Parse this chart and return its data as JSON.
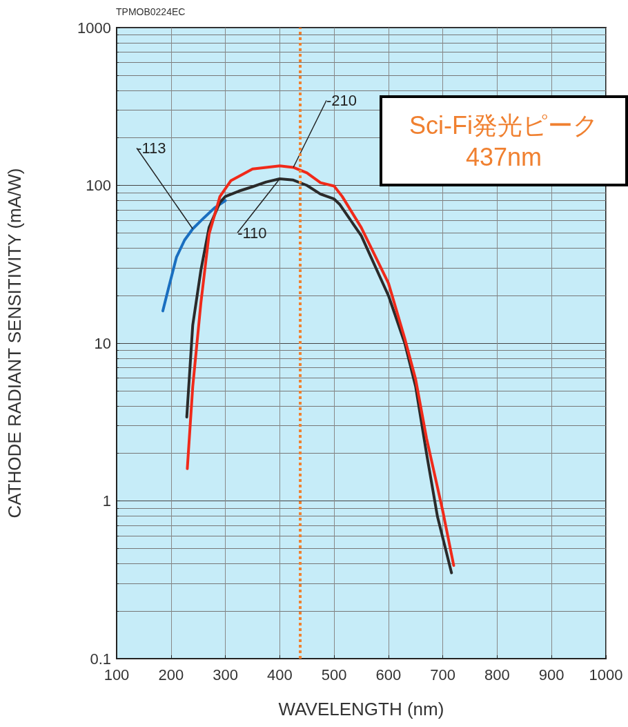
{
  "chart_data": {
    "type": "line",
    "xlabel": "WAVELENGTH (nm)",
    "ylabel": "CATHODE RADIANT SENSITIVITY (mA/W)",
    "annotations": [
      "TPMOB0224EC"
    ],
    "log": "y",
    "grid": true,
    "legend": false,
    "marker": "none",
    "line_style": "solid",
    "xlim": [
      100,
      1000
    ],
    "xticks": [
      100,
      200,
      300,
      400,
      500,
      600,
      700,
      800,
      900,
      1000
    ],
    "ylim": [
      0.1,
      1000
    ],
    "yticks": [
      0.1,
      1,
      10,
      100,
      1000
    ],
    "ref_lines": [
      {
        "axis": "x",
        "value": 437,
        "label": "Sci-Fi発光ピーク\n437nm",
        "color": "#f08030",
        "line_style": "dotted"
      }
    ],
    "series": [
      {
        "name": "-113",
        "color": "#1a6fc0",
        "x": [
          185,
          195,
          210,
          225,
          240,
          260,
          280,
          300
        ],
        "values": [
          16,
          22,
          35,
          45,
          53,
          62,
          72,
          80
        ]
      },
      {
        "name": "-110",
        "color": "#2a2a2a",
        "x": [
          229,
          240,
          255,
          270,
          290,
          300,
          325,
          350,
          375,
          400,
          425,
          450,
          475,
          500,
          510,
          550,
          600,
          630,
          650,
          670,
          690,
          716
        ],
        "values": [
          3.4,
          13,
          29,
          54,
          78,
          85,
          92,
          98,
          105,
          110,
          108,
          100,
          88,
          82,
          76,
          48,
          20,
          10,
          5.3,
          2,
          0.8,
          0.35
        ]
      },
      {
        "name": "-210",
        "color": "#f02a1a",
        "x": [
          230,
          240,
          255,
          270,
          290,
          310,
          350,
          400,
          425,
          450,
          475,
          500,
          515,
          550,
          600,
          630,
          650,
          670,
          700,
          720
        ],
        "values": [
          1.6,
          5.3,
          18,
          49,
          85,
          107,
          127,
          133,
          130,
          120,
          104,
          99,
          85,
          54,
          24,
          10.7,
          5.9,
          2.5,
          0.86,
          0.39
        ]
      }
    ]
  }
}
